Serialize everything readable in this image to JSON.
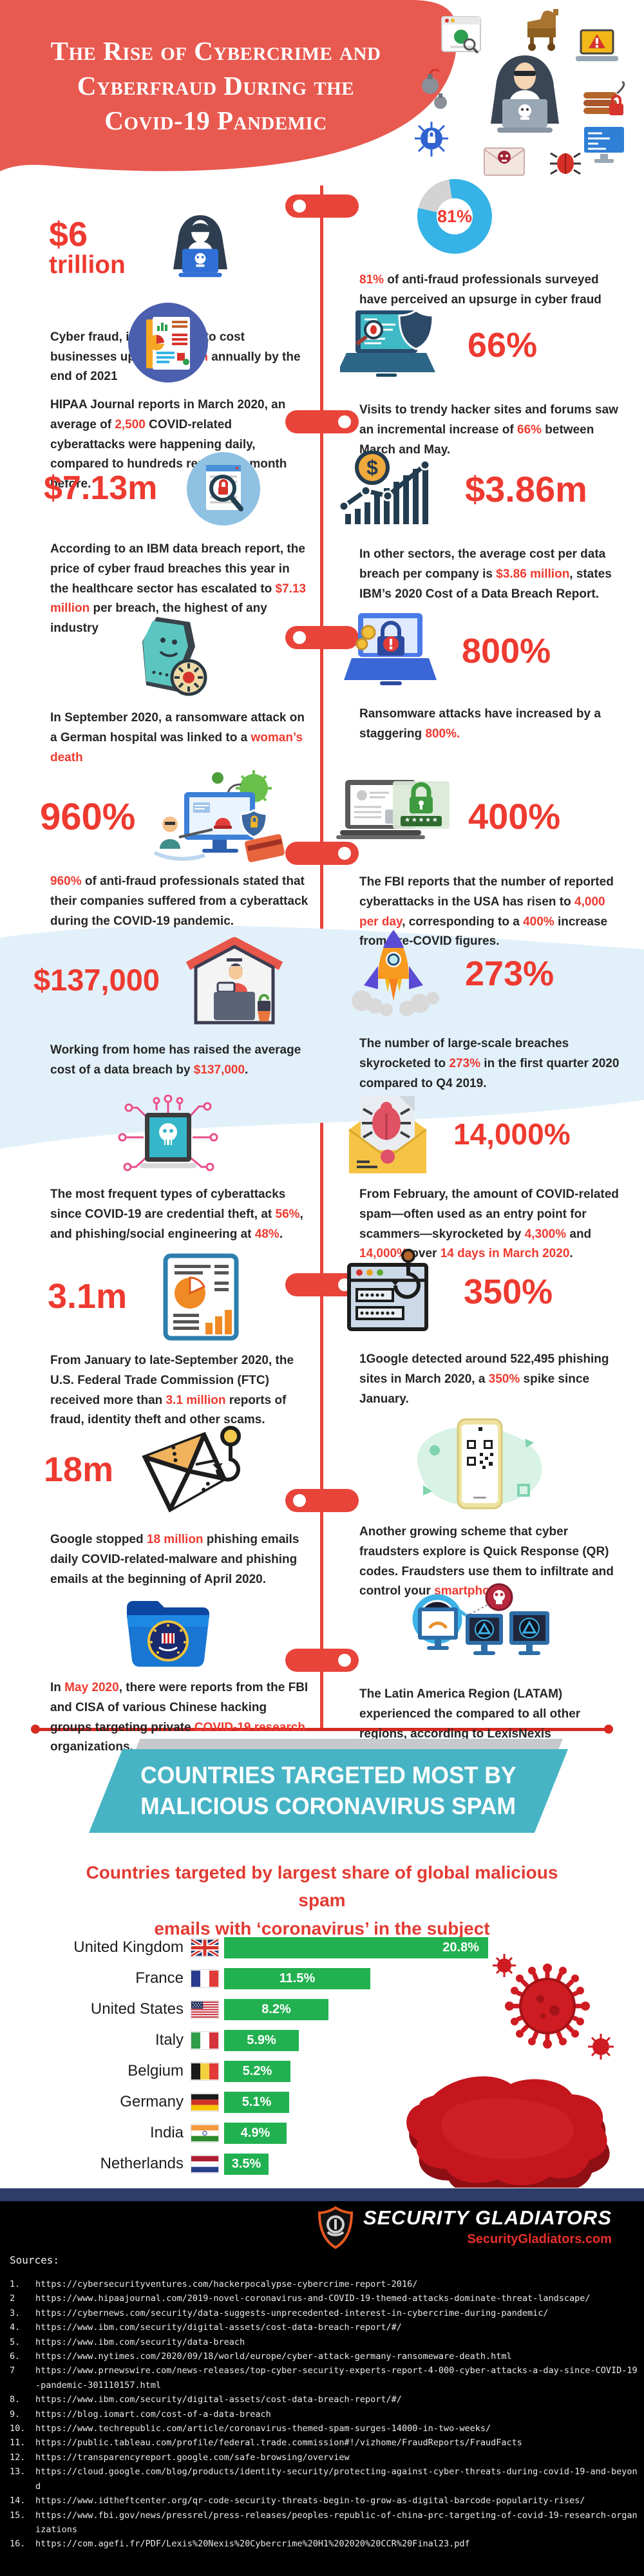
{
  "header": {
    "title": "The Rise of Cybercrime and\nCyberfraud During the\nCovid-19 Pandemic"
  },
  "colors": {
    "accent_red": "#e8443a",
    "stat_red": "#ee3a30",
    "donut_blue": "#35b3e6",
    "band_blue": "#e2f0fa",
    "banner_teal": "#47b4c5",
    "bar_green": "#22b150",
    "navy_divider": "#2d3c68",
    "footer_black": "#000000"
  },
  "icons": [
    "hacker-laptop-icon",
    "report-stack-icon",
    "breach-magnifier-lock-icon",
    "coffin-virus-icon",
    "fraud-monitor-illustration",
    "wfh-house-icon",
    "circuit-skull-laptop-icon",
    "ftc-report-icon",
    "phishing-mail-hook-icon",
    "fbi-folder-icon",
    "donut-chart",
    "laptop-shield-bug-icon",
    "cost-growth-chart-icon",
    "ransom-laptop-alert-icon",
    "password-lock-laptop-icon",
    "rocket-icon",
    "mail-bug-icon",
    "phishing-site-hook-icon",
    "qr-phone-illustration",
    "monitors-skull-illustration",
    "coronavirus-icon",
    "europe-map-3d",
    "security-gladiators-shield-logo"
  ],
  "stats": {
    "l1": {
      "big": "$6",
      "big2": "trillion",
      "desc": [
        [
          "Cyber fraud, is forecasted to cost businesses up to "
        ],
        [
          "$6 trillion",
          1
        ],
        [
          " annually by the end of 2021"
        ]
      ]
    },
    "r1": {
      "donut": "81%",
      "desc": [
        [
          "81%",
          1
        ],
        [
          " of anti-fraud professionals surveyed have perceived an upsurge in cyber fraud schemes"
        ]
      ]
    },
    "l2": {
      "desc": [
        [
          "HIPAA Journal reports in March 2020, an average of "
        ],
        [
          "2,500",
          1
        ],
        [
          " COVID-related cyberattacks were happening daily, compared to hundreds reported a month before."
        ]
      ]
    },
    "r2": {
      "big": "66%",
      "desc": [
        [
          "Visits to trendy hacker sites and forums saw an incremental increase of "
        ],
        [
          "66%",
          1
        ],
        [
          " between March and May."
        ]
      ]
    },
    "l3": {
      "big": "$7.13m",
      "desc": [
        [
          "According to an IBM data breach report, the price of cyber fraud breaches this year in the healthcare sector has escalated to "
        ],
        [
          "$7.13 million",
          1
        ],
        [
          " per breach, the highest of any industry"
        ]
      ]
    },
    "r3": {
      "big": "$3.86m",
      "desc": [
        [
          "In other sectors, the average cost per data breach per company is "
        ],
        [
          "$3.86 million",
          1
        ],
        [
          ", states IBM’s 2020 Cost of a Data Breach Report."
        ]
      ]
    },
    "l4": {
      "desc": [
        [
          "In September 2020, a ransomware attack on a German hospital was linked to a "
        ],
        [
          "woman’s death",
          1
        ]
      ]
    },
    "r4": {
      "big": "800%",
      "desc": [
        [
          "Ransomware attacks have increased by a staggering "
        ],
        [
          "800%.",
          1
        ]
      ]
    },
    "l5": {
      "big": "960%",
      "desc": [
        [
          "960%",
          1
        ],
        [
          " of anti-fraud professionals stated that their companies suffered from a cyberattack during the COVID-19 pandemic."
        ]
      ]
    },
    "r5": {
      "big": "400%",
      "desc": [
        [
          "The FBI reports that the number of reported cyberattacks in the USA has risen to "
        ],
        [
          "4,000 per day",
          1
        ],
        [
          ", corresponding to a "
        ],
        [
          "400%",
          1
        ],
        [
          " increase from pre-COVID figures."
        ]
      ]
    },
    "l6": {
      "big": "$137,000",
      "desc": [
        [
          "Working from home has raised the average cost of a data breach by "
        ],
        [
          "$137,000",
          1
        ],
        [
          "."
        ]
      ]
    },
    "r6": {
      "big": "273%",
      "desc": [
        [
          "The number of large-scale breaches skyrocketed to "
        ],
        [
          "273%",
          1
        ],
        [
          " in the first quarter 2020 compared to Q4 2019."
        ]
      ]
    },
    "l7": {
      "desc": [
        [
          "The most frequent types of cyberattacks since COVID-19 are credential theft, at "
        ],
        [
          "56%",
          1
        ],
        [
          ", and phishing/social engineering at "
        ],
        [
          "48%",
          1
        ],
        [
          "."
        ]
      ]
    },
    "r7": {
      "big": "14,000%",
      "desc": [
        [
          "From February, the amount of COVID-related spam—often used as an entry point for scammers—skyrocketed by "
        ],
        [
          "4,300%",
          1
        ],
        [
          " and "
        ],
        [
          "14,000%",
          1
        ],
        [
          " over "
        ],
        [
          "14 days in March 2020",
          1
        ],
        [
          "."
        ]
      ]
    },
    "l8": {
      "big": "3.1m",
      "desc": [
        [
          "From January to late-September 2020, the U.S. Federal Trade Commission (FTC) received more than "
        ],
        [
          "3.1 million",
          1
        ],
        [
          " reports of fraud, identity theft and other scams."
        ]
      ]
    },
    "r8": {
      "big": "350%",
      "desc": [
        [
          "1Google detected around 522,495 phishing sites in March 2020, a "
        ],
        [
          "350%",
          1
        ],
        [
          " spike since January."
        ]
      ]
    },
    "l9": {
      "big": "18m",
      "desc": [
        [
          "Google stopped "
        ],
        [
          "18 million",
          1
        ],
        [
          " phishing emails daily COVID-related-malware and phishing emails at the beginning of April 2020."
        ]
      ]
    },
    "r9": {
      "desc": [
        [
          "Another growing scheme that cyber fraudsters explore is Quick Response (QR) codes. Fraudsters use them to infiltrate and control your "
        ],
        [
          "smartphone.",
          1
        ]
      ]
    },
    "l10": {
      "desc": [
        [
          "In "
        ],
        [
          "May 2020",
          1
        ],
        [
          ", there were reports from the FBI and CISA of various Chinese hacking groups targeting private "
        ],
        [
          "COVID-19 research",
          1
        ],
        [
          " organizations."
        ]
      ]
    },
    "r10": {
      "desc": [
        [
          "The Latin America Region (LATAM) experienced the compared to all other regions, according to LexisNexis"
        ]
      ]
    }
  },
  "banner": {
    "line1": "COUNTRIES TARGETED MOST BY",
    "line2": "MALICIOUS CORONAVIRUS SPAM"
  },
  "chart_data": {
    "type": "bar",
    "orientation": "horizontal",
    "title": "Countries targeted by largest share of global malicious spam\nemails with ‘coronavirus’ in the subject",
    "categories": [
      "United Kingdom",
      "France",
      "United States",
      "Italy",
      "Belgium",
      "Germany",
      "India",
      "Netherlands"
    ],
    "values": [
      20.8,
      11.5,
      8.2,
      5.9,
      5.2,
      5.1,
      4.9,
      3.5
    ],
    "value_labels": [
      "20.8%",
      "11.5%",
      "8.2%",
      "5.9%",
      "5.2%",
      "5.1%",
      "4.9%",
      "3.5%"
    ],
    "flags": [
      "uk",
      "fr",
      "us",
      "it",
      "be",
      "de",
      "in",
      "nl"
    ],
    "unit": "%",
    "xlim": [
      0,
      21
    ],
    "bar_color": "#22b150",
    "grid": false,
    "legend": false
  },
  "footer": {
    "brand": "SECURITY GLADIATORS",
    "site": "SecurityGladiators.com",
    "sources_label": "Sources:",
    "sources": [
      [
        "1.",
        "https://cybersecurityventures.com/hackerpocalypse-cybercrime-report-2016/"
      ],
      [
        "2",
        "https://www.hipaajournal.com/2019-novel-coronavirus-and-COVID-19-themed-attacks-dominate-threat-landscape/"
      ],
      [
        "3.",
        "https://cybernews.com/security/data-suggests-unprecedented-interest-in-cybercrime-during-pandemic/"
      ],
      [
        "4.",
        "https://www.ibm.com/security/digital-assets/cost-data-breach-report/#/"
      ],
      [
        "5.",
        "https://www.ibm.com/security/data-breach"
      ],
      [
        "6.",
        "https://www.nytimes.com/2020/09/18/world/europe/cyber-attack-germany-ransomeware-death.html"
      ],
      [
        "7",
        "https://www.prnewswire.com/news-releases/top-cyber-security-experts-report-4-000-cyber-attacks-a-day-since-COVID-19-pandemic-301110157.html"
      ],
      [
        "8.",
        "https://www.ibm.com/security/digital-assets/cost-data-breach-report/#/"
      ],
      [
        "9.",
        "https://blog.iomart.com/cost-of-a-data-breach"
      ],
      [
        "10.",
        "https://www.techrepublic.com/article/coronavirus-themed-spam-surges-14000-in-two-weeks/"
      ],
      [
        "11.",
        "https://public.tableau.com/profile/federal.trade.commission#!/vizhome/FraudReports/FraudFacts"
      ],
      [
        "12.",
        "https://transparencyreport.google.com/safe-browsing/overview"
      ],
      [
        "13.",
        "https://cloud.google.com/blog/products/identity-security/protecting-against-cyber-threats-during-covid-19-and-beyond"
      ],
      [
        "14.",
        "https://www.idtheftcenter.org/qr-code-security-threats-begin-to-grow-as-digital-barcode-popularity-rises/"
      ],
      [
        "15.",
        "https://www.fbi.gov/news/pressrel/press-releases/peoples-republic-of-china-prc-targeting-of-covid-19-research-organizations"
      ],
      [
        "16.",
        "https://com.agefi.fr/PDF/Lexis%20Nexis%20Cybercrime%20H1%202020%20CCR%20Final23.pdf"
      ]
    ]
  }
}
